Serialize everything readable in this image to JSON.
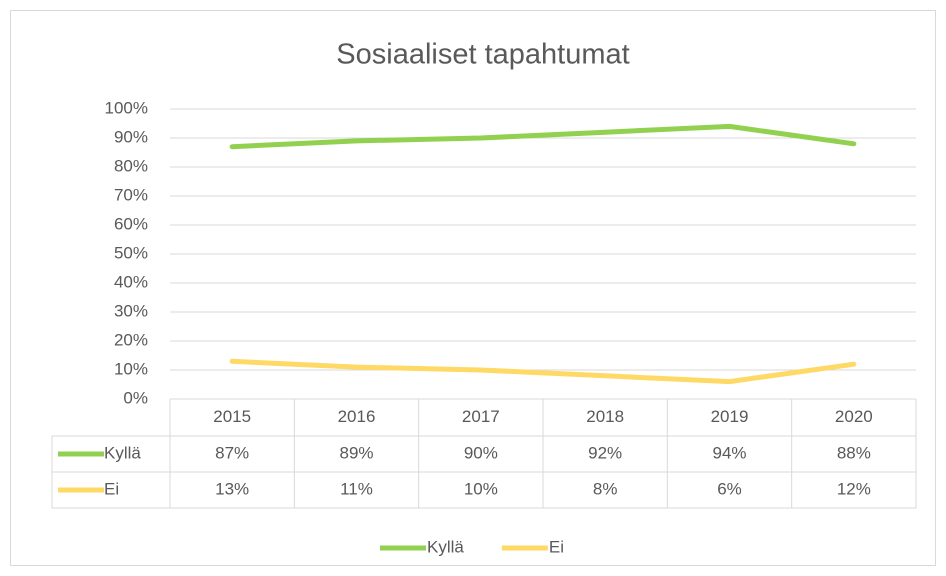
{
  "chart_data": {
    "type": "line",
    "title": "Sosiaaliset tapahtumat",
    "categories": [
      "2015",
      "2016",
      "2017",
      "2018",
      "2019",
      "2020"
    ],
    "series": [
      {
        "name": "Kyllä",
        "color": "#92d050",
        "values": [
          87,
          89,
          90,
          92,
          94,
          88
        ],
        "value_labels": [
          "87%",
          "89%",
          "90%",
          "92%",
          "94%",
          "88%"
        ]
      },
      {
        "name": "Ei",
        "color": "#ffd966",
        "values": [
          13,
          11,
          10,
          8,
          6,
          12
        ],
        "value_labels": [
          "13%",
          "11%",
          "10%",
          "8%",
          "6%",
          "12%"
        ]
      }
    ],
    "ylim": [
      0,
      100
    ],
    "yticks": [
      {
        "value": 0,
        "label": "0%"
      },
      {
        "value": 10,
        "label": "10%"
      },
      {
        "value": 20,
        "label": "20%"
      },
      {
        "value": 30,
        "label": "30%"
      },
      {
        "value": 40,
        "label": "40%"
      },
      {
        "value": 50,
        "label": "50%"
      },
      {
        "value": 60,
        "label": "60%"
      },
      {
        "value": 70,
        "label": "70%"
      },
      {
        "value": 80,
        "label": "80%"
      },
      {
        "value": 90,
        "label": "90%"
      },
      {
        "value": 100,
        "label": "100%"
      }
    ],
    "grid": true,
    "legend": "bottom"
  }
}
